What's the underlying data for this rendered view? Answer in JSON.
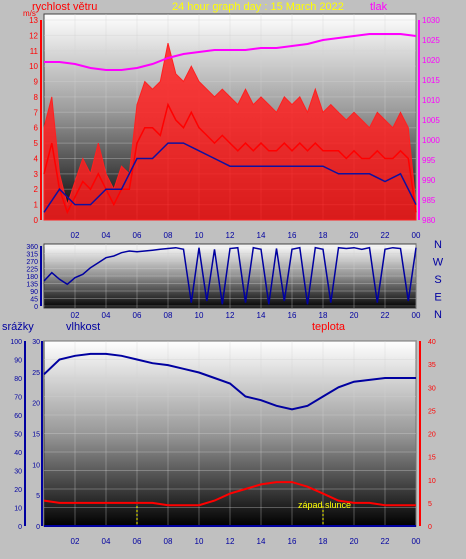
{
  "colors": {
    "background": "#c0c0c0",
    "wind": "#ff0000",
    "gust": "#ff2020",
    "avg_wind": "#1010a0",
    "pressure": "#ff00ff",
    "direction": "#0000a0",
    "humidity": "#0000a0",
    "temperature": "#ff0000",
    "rain_axis": "#0000a0",
    "sunset": "#ffff00",
    "title": "#ffff00"
  },
  "chart_data": [
    {
      "id": "wind-pressure",
      "type": "line",
      "title": "24 hour graph day : 15 March 2022",
      "left_label": "rychlost větru",
      "right_label": "tlak",
      "left_unit": "m/s",
      "x_ticks": [
        "02",
        "04",
        "06",
        "08",
        "10",
        "12",
        "14",
        "16",
        "18",
        "20",
        "22",
        "00"
      ],
      "ylim_left": [
        0,
        13
      ],
      "yticks_left": [
        0,
        1,
        2,
        3,
        4,
        5,
        6,
        7,
        8,
        9,
        10,
        11,
        12,
        13
      ],
      "ylim_right": [
        980,
        1030
      ],
      "yticks_right": [
        980,
        985,
        990,
        995,
        1000,
        1005,
        1010,
        1015,
        1020,
        1025,
        1030
      ],
      "series": [
        {
          "name": "tlak",
          "axis": "right",
          "x": [
            0,
            1,
            2,
            3,
            4,
            5,
            6,
            7,
            8,
            9,
            10,
            11,
            12,
            13,
            14,
            15,
            16,
            17,
            18,
            19,
            20,
            21,
            22,
            23,
            24
          ],
          "values": [
            1019.5,
            1019.5,
            1019,
            1018,
            1017.5,
            1017.5,
            1018,
            1019,
            1020.5,
            1021.5,
            1022,
            1022.5,
            1022.5,
            1022.5,
            1023,
            1023,
            1023.5,
            1024,
            1025,
            1025.5,
            1026,
            1026.5,
            1026.5,
            1026.5,
            1026
          ]
        },
        {
          "name": "gust",
          "axis": "left",
          "x": [
            0,
            0.5,
            1,
            1.5,
            2,
            2.5,
            3,
            3.5,
            4,
            4.5,
            5,
            5.5,
            6,
            6.5,
            7,
            7.5,
            8,
            8.5,
            9,
            9.5,
            10,
            10.5,
            11,
            11.5,
            12,
            12.5,
            13,
            13.5,
            14,
            14.5,
            15,
            15.5,
            16,
            16.5,
            17,
            17.5,
            18,
            18.5,
            19,
            19.5,
            20,
            20.5,
            21,
            21.5,
            22,
            22.5,
            23,
            23.5,
            24
          ],
          "values": [
            6,
            8,
            3,
            1,
            2.5,
            4,
            3,
            5,
            3,
            2,
            3.5,
            3,
            7.5,
            9,
            8.5,
            9,
            11.5,
            9.5,
            9,
            10,
            9,
            8.5,
            8,
            8.5,
            8,
            7.5,
            8.5,
            7.5,
            8,
            7.5,
            7,
            8,
            7.5,
            8,
            7,
            8.5,
            7,
            7.5,
            7,
            6.5,
            7,
            6.5,
            6,
            7,
            6.5,
            6,
            7,
            6,
            1
          ]
        },
        {
          "name": "wind",
          "axis": "left",
          "x": [
            0,
            0.5,
            1,
            1.5,
            2,
            2.5,
            3,
            3.5,
            4,
            4.5,
            5,
            5.5,
            6,
            6.5,
            7,
            7.5,
            8,
            8.5,
            9,
            9.5,
            10,
            10.5,
            11,
            11.5,
            12,
            12.5,
            13,
            13.5,
            14,
            14.5,
            15,
            15.5,
            16,
            16.5,
            17,
            17.5,
            18,
            18.5,
            19,
            19.5,
            20,
            20.5,
            21,
            21.5,
            22,
            22.5,
            23,
            23.5,
            24
          ],
          "values": [
            3,
            5,
            2,
            0.5,
            1.5,
            2.5,
            2,
            3,
            2,
            1,
            2,
            2,
            5,
            6,
            6,
            5.5,
            7.5,
            6.5,
            6,
            7,
            6,
            5.5,
            5,
            5.5,
            5,
            4.5,
            5,
            4.5,
            5,
            4.5,
            4.5,
            5,
            4.5,
            5,
            4.5,
            5,
            4.5,
            4.5,
            4.5,
            4,
            4.5,
            4,
            4,
            4.5,
            4,
            4,
            4.5,
            4,
            0.5
          ]
        },
        {
          "name": "avg",
          "axis": "left",
          "x": [
            0,
            1,
            2,
            3,
            4,
            5,
            6,
            7,
            8,
            9,
            10,
            11,
            12,
            13,
            14,
            15,
            16,
            17,
            18,
            19,
            20,
            21,
            22,
            23,
            24
          ],
          "values": [
            0.5,
            2,
            1,
            1,
            2,
            2,
            4,
            4,
            5,
            5,
            4.5,
            4,
            3.5,
            3.5,
            3.5,
            3.5,
            3.5,
            3.5,
            3.5,
            3,
            3,
            3,
            2.5,
            3,
            1
          ]
        }
      ]
    },
    {
      "id": "direction",
      "type": "scatter",
      "x_ticks": [
        "02",
        "04",
        "06",
        "08",
        "10",
        "12",
        "14",
        "16",
        "18",
        "20",
        "22",
        "00"
      ],
      "ylim": [
        0,
        360
      ],
      "yticks": [
        0,
        45,
        90,
        135,
        180,
        225,
        270,
        315,
        360
      ],
      "compass": [
        "N",
        "W",
        "S",
        "E",
        "N"
      ],
      "series": [
        {
          "name": "direction",
          "x": [
            0,
            0.5,
            1,
            1.5,
            2,
            2.5,
            3,
            3.5,
            4,
            4.5,
            5,
            5.5,
            6,
            6.5,
            7,
            7.5,
            8,
            8.5,
            9,
            9.5,
            10,
            10.5,
            11,
            11.5,
            12,
            12.5,
            13,
            13.5,
            14,
            14.5,
            15,
            15.5,
            16,
            16.5,
            17,
            17.5,
            18,
            18.5,
            19,
            19.5,
            20,
            20.5,
            21,
            21.5,
            22,
            22.5,
            23,
            23.5,
            24
          ],
          "values": [
            150,
            200,
            160,
            130,
            170,
            190,
            230,
            260,
            290,
            300,
            320,
            330,
            325,
            330,
            335,
            340,
            345,
            350,
            340,
            20,
            350,
            30,
            340,
            10,
            345,
            350,
            20,
            350,
            340,
            10,
            345,
            30,
            340,
            350,
            10,
            350,
            340,
            20,
            350,
            345,
            350,
            340,
            350,
            20,
            340,
            350,
            345,
            30,
            350
          ]
        }
      ]
    },
    {
      "id": "rain-humidity-temp",
      "type": "line",
      "left_label": "srážky",
      "mid_label": "vlhkost",
      "right_label": "teplota",
      "annotation": "západ slunce",
      "x_ticks": [
        "02",
        "04",
        "06",
        "08",
        "10",
        "12",
        "14",
        "16",
        "18",
        "20",
        "22",
        "00"
      ],
      "ylim_rain": [
        0,
        30
      ],
      "yticks_rain": [
        0,
        5,
        10,
        15,
        20,
        25,
        30
      ],
      "ylim_humidity": [
        0,
        100
      ],
      "yticks_humidity": [
        0,
        10,
        20,
        30,
        40,
        50,
        60,
        70,
        80,
        90,
        100
      ],
      "ylim_temp": [
        0,
        40
      ],
      "yticks_temp": [
        0,
        5,
        10,
        15,
        20,
        25,
        30,
        35,
        40
      ],
      "series": [
        {
          "name": "vlhkost",
          "axis": "humidity",
          "x": [
            0,
            1,
            2,
            3,
            4,
            5,
            6,
            7,
            8,
            9,
            10,
            11,
            12,
            13,
            14,
            15,
            16,
            17,
            18,
            19,
            20,
            21,
            22,
            23,
            24
          ],
          "values": [
            82,
            90,
            92,
            93,
            93,
            92,
            90,
            88,
            87,
            85,
            83,
            80,
            77,
            70,
            68,
            65,
            63,
            65,
            70,
            75,
            78,
            79,
            80,
            80,
            80
          ]
        },
        {
          "name": "teplota",
          "axis": "temp",
          "x": [
            0,
            1,
            2,
            3,
            4,
            5,
            6,
            7,
            8,
            9,
            10,
            11,
            12,
            13,
            14,
            15,
            16,
            17,
            18,
            19,
            20,
            21,
            22,
            23,
            24
          ],
          "values": [
            5.5,
            5,
            5,
            5,
            5,
            5,
            5,
            5,
            4.5,
            4.5,
            4.5,
            5.5,
            7,
            8,
            9,
            9.5,
            9.5,
            8.5,
            7,
            5.5,
            5,
            5,
            4.5,
            4.5,
            4.5
          ]
        },
        {
          "name": "srážky",
          "axis": "rain",
          "x": [
            0,
            24
          ],
          "values": [
            0,
            0
          ]
        }
      ],
      "sunset_x": [
        6,
        18
      ]
    }
  ]
}
